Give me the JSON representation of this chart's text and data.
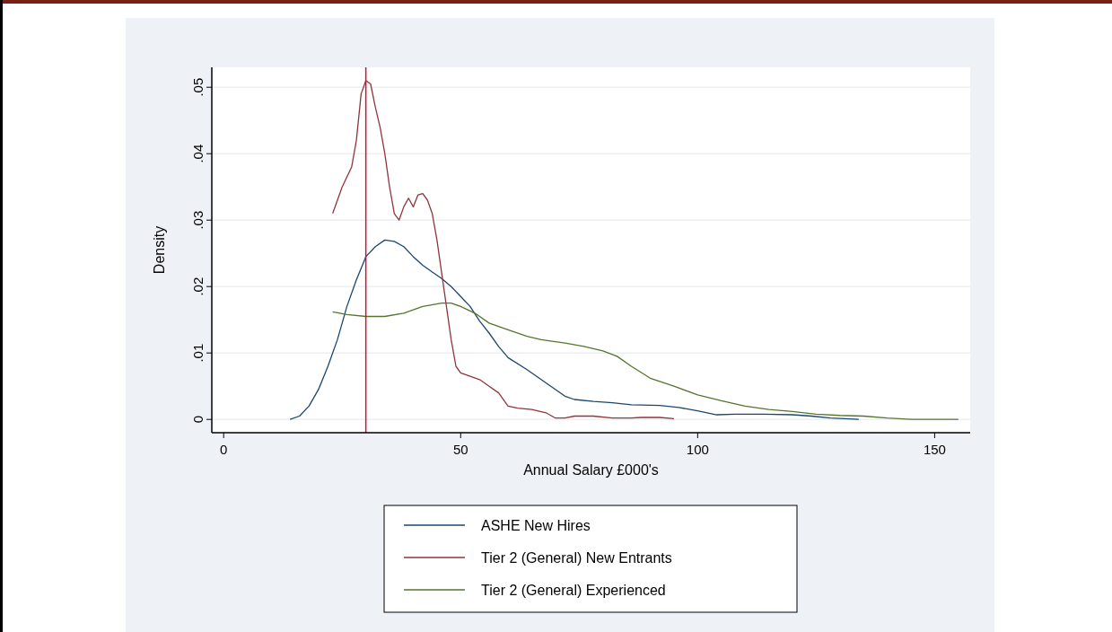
{
  "chart_data": {
    "type": "line",
    "xlabel": "Annual Salary £000's",
    "ylabel": "Density",
    "xlim": [
      -2.5,
      157.5
    ],
    "xticks": [
      0,
      50,
      100,
      150
    ],
    "ylim": [
      -0.002,
      0.053
    ],
    "yticks": [
      {
        "value": 0,
        "label": "0"
      },
      {
        "value": 0.01,
        "label": ".01"
      },
      {
        "value": 0.02,
        "label": ".02"
      },
      {
        "value": 0.03,
        "label": ".03"
      },
      {
        "value": 0.04,
        "label": ".04"
      },
      {
        "value": 0.05,
        "label": ".05"
      }
    ],
    "grid": "y",
    "legend": "bottom",
    "ref_lines": [
      {
        "axis": "x",
        "value": 30,
        "color": "#d6102e"
      }
    ],
    "series": [
      {
        "name": "ASHE New Hires",
        "color": "#1a476f",
        "x": [
          14,
          16,
          18,
          20,
          22,
          24,
          26,
          28,
          30,
          32,
          34,
          36,
          38,
          40,
          42,
          44,
          46,
          48,
          50,
          52,
          54,
          56,
          58,
          60,
          64,
          68,
          72,
          74,
          78,
          82,
          86,
          92,
          96,
          100,
          104,
          108,
          114,
          120,
          124,
          128,
          134
        ],
        "values": [
          0,
          0.0005,
          0.002,
          0.0045,
          0.008,
          0.012,
          0.017,
          0.021,
          0.0245,
          0.026,
          0.027,
          0.0268,
          0.026,
          0.0245,
          0.0232,
          0.0222,
          0.0212,
          0.02,
          0.0185,
          0.017,
          0.0148,
          0.013,
          0.011,
          0.0093,
          0.0075,
          0.0055,
          0.0035,
          0.003,
          0.0027,
          0.0025,
          0.0022,
          0.0021,
          0.0018,
          0.0013,
          0.0007,
          0.0008,
          0.0008,
          0.0007,
          0.0005,
          0.0002,
          0
        ]
      },
      {
        "name": "Tier 2 (General) New Entrants",
        "color": "#90353b",
        "x": [
          23,
          25,
          27,
          28,
          29,
          30,
          31,
          32,
          33,
          34,
          35,
          36,
          37,
          38,
          39,
          40,
          41,
          42,
          43,
          44,
          45,
          46,
          47,
          48,
          49,
          50,
          52,
          54,
          56,
          58,
          60,
          62,
          65,
          68,
          70,
          72,
          74,
          78,
          82,
          86,
          88,
          92,
          95
        ],
        "values": [
          0.031,
          0.035,
          0.038,
          0.042,
          0.049,
          0.051,
          0.0505,
          0.047,
          0.044,
          0.04,
          0.035,
          0.031,
          0.03,
          0.032,
          0.0333,
          0.032,
          0.0338,
          0.034,
          0.033,
          0.031,
          0.027,
          0.022,
          0.017,
          0.012,
          0.008,
          0.007,
          0.0065,
          0.006,
          0.005,
          0.004,
          0.002,
          0.0017,
          0.0015,
          0.001,
          0.0002,
          0.0002,
          0.0005,
          0.0005,
          0.0002,
          0.0002,
          0.0003,
          0.0003,
          0.0001
        ]
      },
      {
        "name": "Tier 2 (General) Experienced",
        "color": "#55752f",
        "x": [
          23,
          26,
          30,
          34,
          38,
          42,
          46,
          48,
          50,
          53,
          56,
          60,
          64,
          67,
          72,
          76,
          80,
          83,
          86,
          90,
          95,
          100,
          105,
          110,
          115,
          120,
          125,
          130,
          135,
          140,
          145,
          155
        ],
        "values": [
          0.0162,
          0.0158,
          0.0155,
          0.0155,
          0.016,
          0.017,
          0.0175,
          0.0175,
          0.017,
          0.016,
          0.0145,
          0.0135,
          0.0125,
          0.012,
          0.0115,
          0.011,
          0.0103,
          0.0095,
          0.008,
          0.0062,
          0.005,
          0.0037,
          0.0028,
          0.002,
          0.0015,
          0.0012,
          0.0008,
          0.0006,
          0.0005,
          0.0002,
          0,
          0
        ]
      }
    ]
  }
}
